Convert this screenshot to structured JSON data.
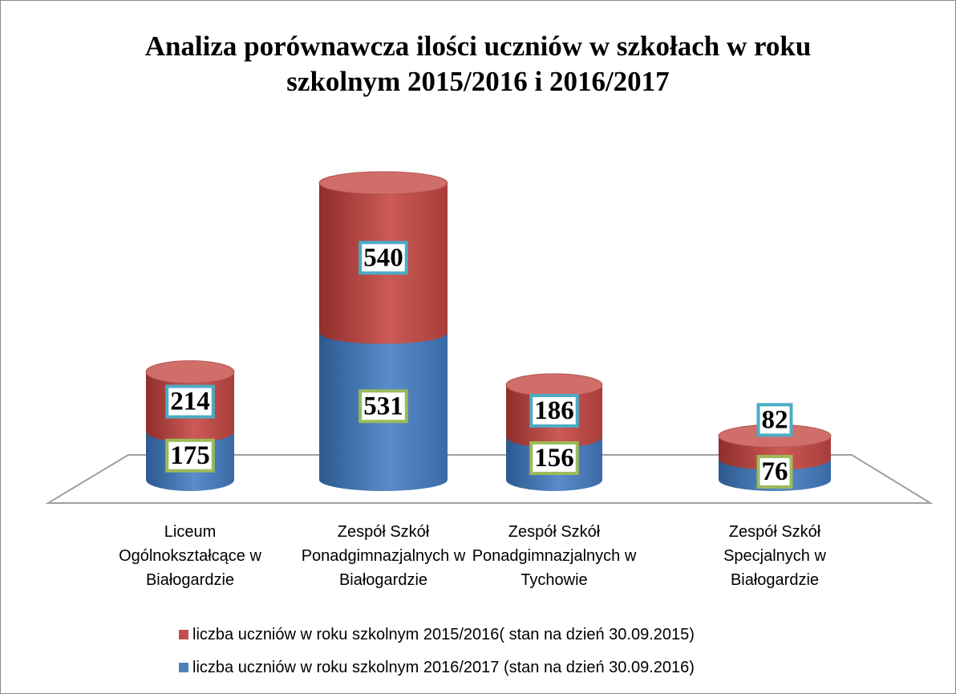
{
  "chart_data": {
    "type": "cylinder_stacked",
    "title": "Analiza porównawcza ilości uczniów w szkołach w roku szkolnym 2015/2016 i 2016/2017",
    "categories": [
      "Liceum Ogólnokształcące w Białogardzie",
      "Zespół Szkół Ponadgimnazjalnych w Białogardzie",
      "Zespół Szkół Ponadgimnazjalnych w Tychowie",
      "Zespół Szkół Specjalnych w Białogardzie"
    ],
    "series": [
      {
        "name": "liczba uczniów w roku szkolnym 2016/2017 (stan na dzień 30.09.2016)",
        "color": "#4f81bd",
        "values": [
          175,
          531,
          156,
          76
        ]
      },
      {
        "name": "liczba uczniów w roku szkolnym 2015/2016( stan na dzień 30.09.2015)",
        "color": "#c0504d",
        "values": [
          214,
          540,
          186,
          82
        ]
      }
    ],
    "legend_order": [
      1,
      0
    ],
    "ylim": [
      0,
      1100
    ]
  }
}
